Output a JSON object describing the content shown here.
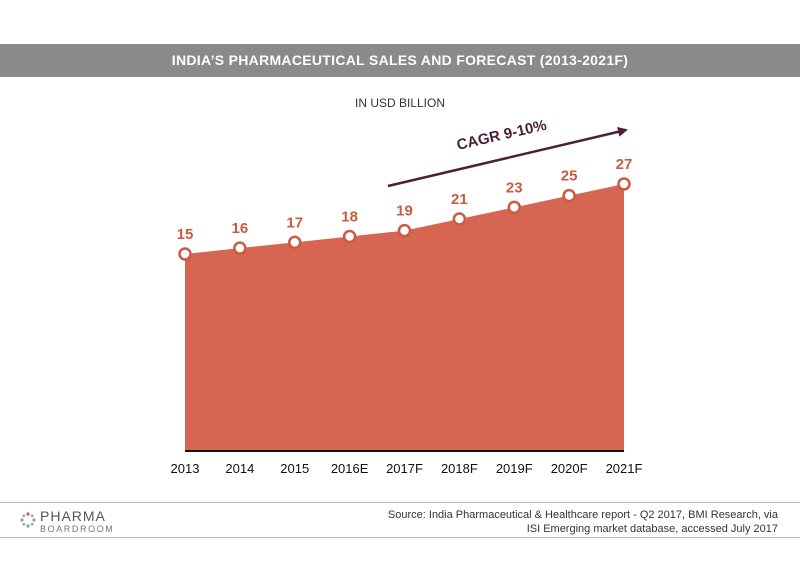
{
  "title": "INDIA’S PHARMACEUTICAL SALES AND FORECAST (2013-2021F)",
  "subtitle": "IN USD BILLION",
  "colors": {
    "area": "#d66552",
    "label": "#c95c40",
    "header": "#8a8a8a",
    "arrow": "#4e2038"
  },
  "chart_data": {
    "type": "area",
    "categories": [
      "2013",
      "2014",
      "2015",
      "2016E",
      "2017F",
      "2018F",
      "2019F",
      "2020F",
      "2021F"
    ],
    "values": [
      15,
      16,
      17,
      18,
      19,
      21,
      23,
      25,
      27
    ],
    "title": "INDIA’S PHARMACEUTICAL SALES AND FORECAST (2013-2021F)",
    "subtitle": "IN USD BILLION",
    "annotation": {
      "text": "CAGR 9-10%",
      "from": "2017F",
      "to": "2021F"
    },
    "data_labels": true,
    "grid": false,
    "legend": "none"
  },
  "footer": {
    "logo_top": "PHARMA",
    "logo_bottom": "BOARDROOM",
    "source_line1": "Source: India Pharmaceutical & Healthcare report - Q2 2017, BMI Research, via",
    "source_line2": "ISI Emerging market database, accessed July 2017"
  }
}
